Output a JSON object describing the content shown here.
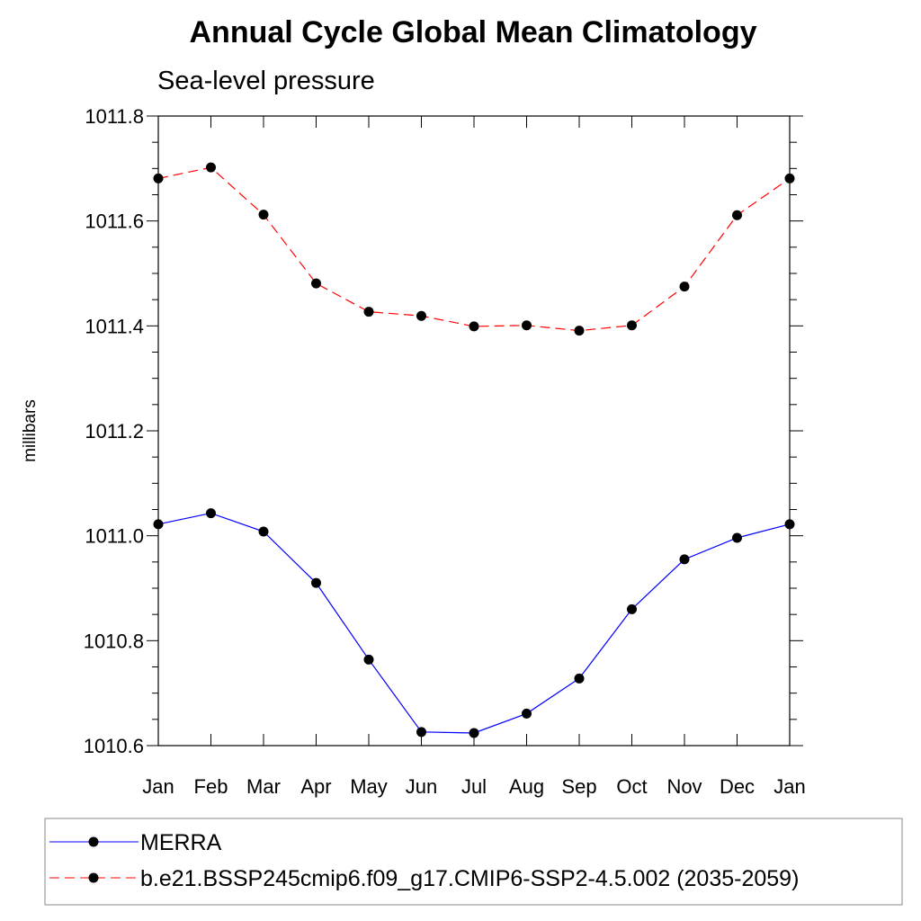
{
  "chart_data": {
    "type": "line",
    "title": "Annual Cycle Global Mean Climatology",
    "subtitle": "Sea-level pressure",
    "xlabel": "",
    "ylabel": "millibars",
    "categories": [
      "Jan",
      "Feb",
      "Mar",
      "Apr",
      "May",
      "Jun",
      "Jul",
      "Aug",
      "Sep",
      "Oct",
      "Nov",
      "Dec",
      "Jan"
    ],
    "ylim": [
      1010.6,
      1011.8
    ],
    "yticks": [
      "1010.6",
      "1010.8",
      "1011.0",
      "1011.2",
      "1011.4",
      "1011.6",
      "1011.8"
    ],
    "grid": false,
    "legend_position": "bottom",
    "series": [
      {
        "name": "MERRA",
        "color": "#0000ff",
        "line_style": "solid",
        "marker": "filled-circle",
        "values": [
          1011.022,
          1011.043,
          1011.008,
          1010.91,
          1010.764,
          1010.626,
          1010.624,
          1010.661,
          1010.728,
          1010.86,
          1010.955,
          1010.996,
          1011.022
        ]
      },
      {
        "name": "b.e21.BSSP245cmip6.f09_g17.CMIP6-SSP2-4.5.002 (2035-2059)",
        "color": "#ff0000",
        "line_style": "dashed",
        "marker": "filled-circle",
        "values": [
          1011.681,
          1011.702,
          1011.612,
          1011.481,
          1011.427,
          1011.419,
          1011.399,
          1011.401,
          1011.391,
          1011.401,
          1011.475,
          1011.611,
          1011.681
        ]
      }
    ]
  }
}
